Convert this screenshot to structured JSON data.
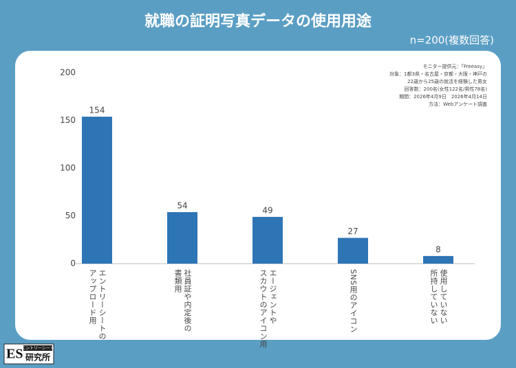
{
  "chart_data": {
    "type": "bar",
    "title": "就職の証明写真データの使用用途",
    "subtitle": "n=200(複数回答)",
    "categories": [
      "エントリーシートの\nアップロード用",
      "社員証や内定後の\n書類用",
      "エージェントや\nスカウトのアイコン用",
      "SNS用のアイコン",
      "使用していない\n所持していない"
    ],
    "values": [
      154,
      54,
      49,
      27,
      8
    ],
    "color": "#2e75b6",
    "ylim": [
      0,
      200
    ],
    "yticks": [
      0,
      50,
      100,
      150,
      200
    ],
    "grid": false,
    "notes": [
      "モニター提供元：「Freeasy」",
      "対象：1都3県・名古屋・京都・大阪・神戸の",
      "22歳から25歳の就活を経験した男女",
      "回答数：200名(女性122名/男性78名)",
      "期間：2026年4月9日　2026年4月14日",
      "方法：Webアンケート調査"
    ]
  },
  "logo": {
    "main": "ES",
    "sub": "エントリーシート",
    "name": "研究所"
  }
}
